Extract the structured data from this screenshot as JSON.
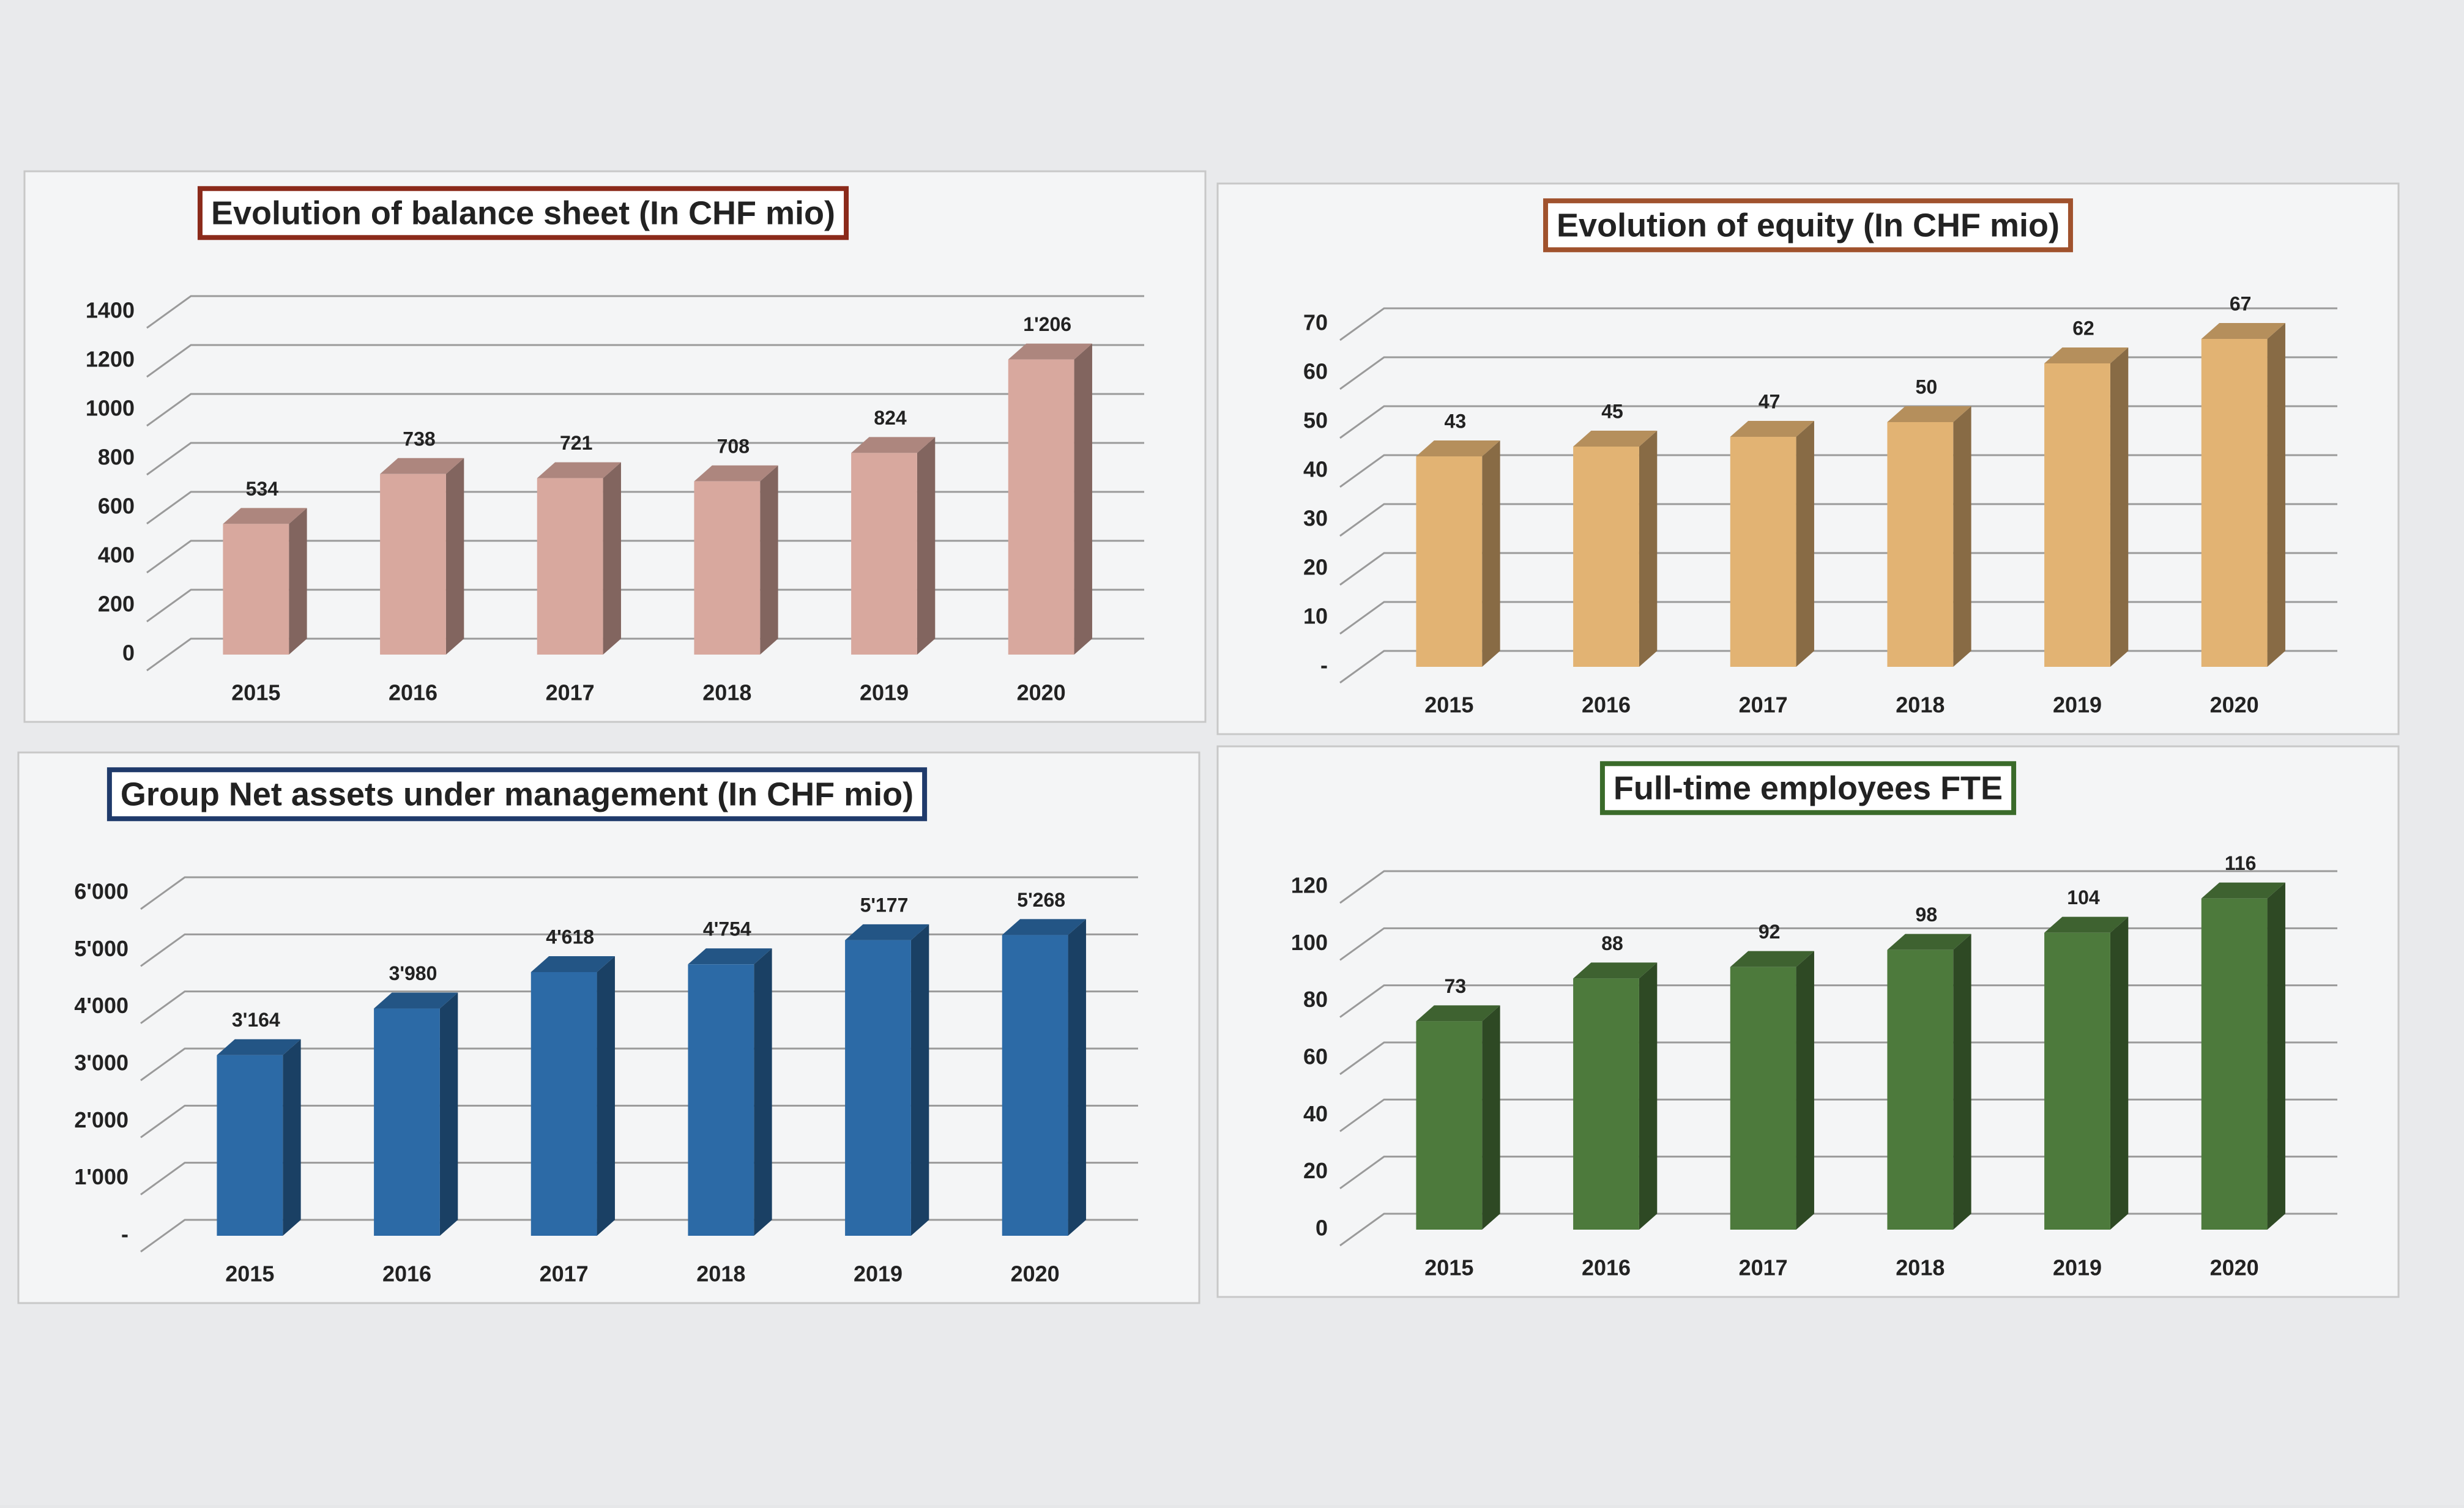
{
  "chart_data": [
    {
      "type": "bar",
      "title": "Evolution of balance sheet (In CHF mio)",
      "title_frame_color": "#8b2a1a",
      "categories": [
        "2015",
        "2016",
        "2017",
        "2018",
        "2019",
        "2020"
      ],
      "values": [
        534,
        738,
        721,
        708,
        824,
        1206
      ],
      "value_labels": [
        "534",
        "738",
        "721",
        "708",
        "824",
        "1'206"
      ],
      "color": "#d8a89e",
      "ylim": [
        0,
        1400
      ],
      "yticks": [
        0,
        200,
        400,
        600,
        800,
        1000,
        1200,
        1400
      ],
      "grid": true
    },
    {
      "type": "bar",
      "title": "Evolution of equity (In CHF mio)",
      "title_frame_color": "#a0522d",
      "categories": [
        "2015",
        "2016",
        "2017",
        "2018",
        "2019",
        "2020"
      ],
      "values": [
        43,
        45,
        47,
        50,
        62,
        67
      ],
      "color": "#e2b373",
      "ylim": [
        0,
        70
      ],
      "yticks": [
        {
          "value": 0,
          "label": "-"
        },
        10,
        20,
        30,
        40,
        50,
        60,
        70
      ],
      "grid": true
    },
    {
      "type": "bar",
      "title": "Group Net assets under management (In CHF mio)",
      "title_frame_color": "#1f3a6b",
      "categories": [
        "2015",
        "2016",
        "2017",
        "2018",
        "2019",
        "2020"
      ],
      "values": [
        3164,
        3980,
        4618,
        4754,
        5177,
        5268
      ],
      "value_labels": [
        "3'164",
        "3'980",
        "4'618",
        "4'754",
        "5'177",
        "5'268"
      ],
      "color": "#2c6aa6",
      "ylim": [
        0,
        6000
      ],
      "yticks": [
        {
          "value": 0,
          "label": "-"
        },
        {
          "value": 1000,
          "label": "1'000"
        },
        {
          "value": 2000,
          "label": "2'000"
        },
        {
          "value": 3000,
          "label": "3'000"
        },
        {
          "value": 4000,
          "label": "4'000"
        },
        {
          "value": 5000,
          "label": "5'000"
        },
        {
          "value": 6000,
          "label": "6'000"
        }
      ],
      "grid": true
    },
    {
      "type": "bar",
      "title": "Full-time employees FTE",
      "title_frame_color": "#3a6b2a",
      "categories": [
        "2015",
        "2016",
        "2017",
        "2018",
        "2019",
        "2020"
      ],
      "values": [
        73,
        88,
        92,
        98,
        104,
        116
      ],
      "color": "#4d7a3c",
      "ylim": [
        0,
        120
      ],
      "yticks": [
        0,
        20,
        40,
        60,
        80,
        100,
        120
      ],
      "grid": true
    }
  ]
}
